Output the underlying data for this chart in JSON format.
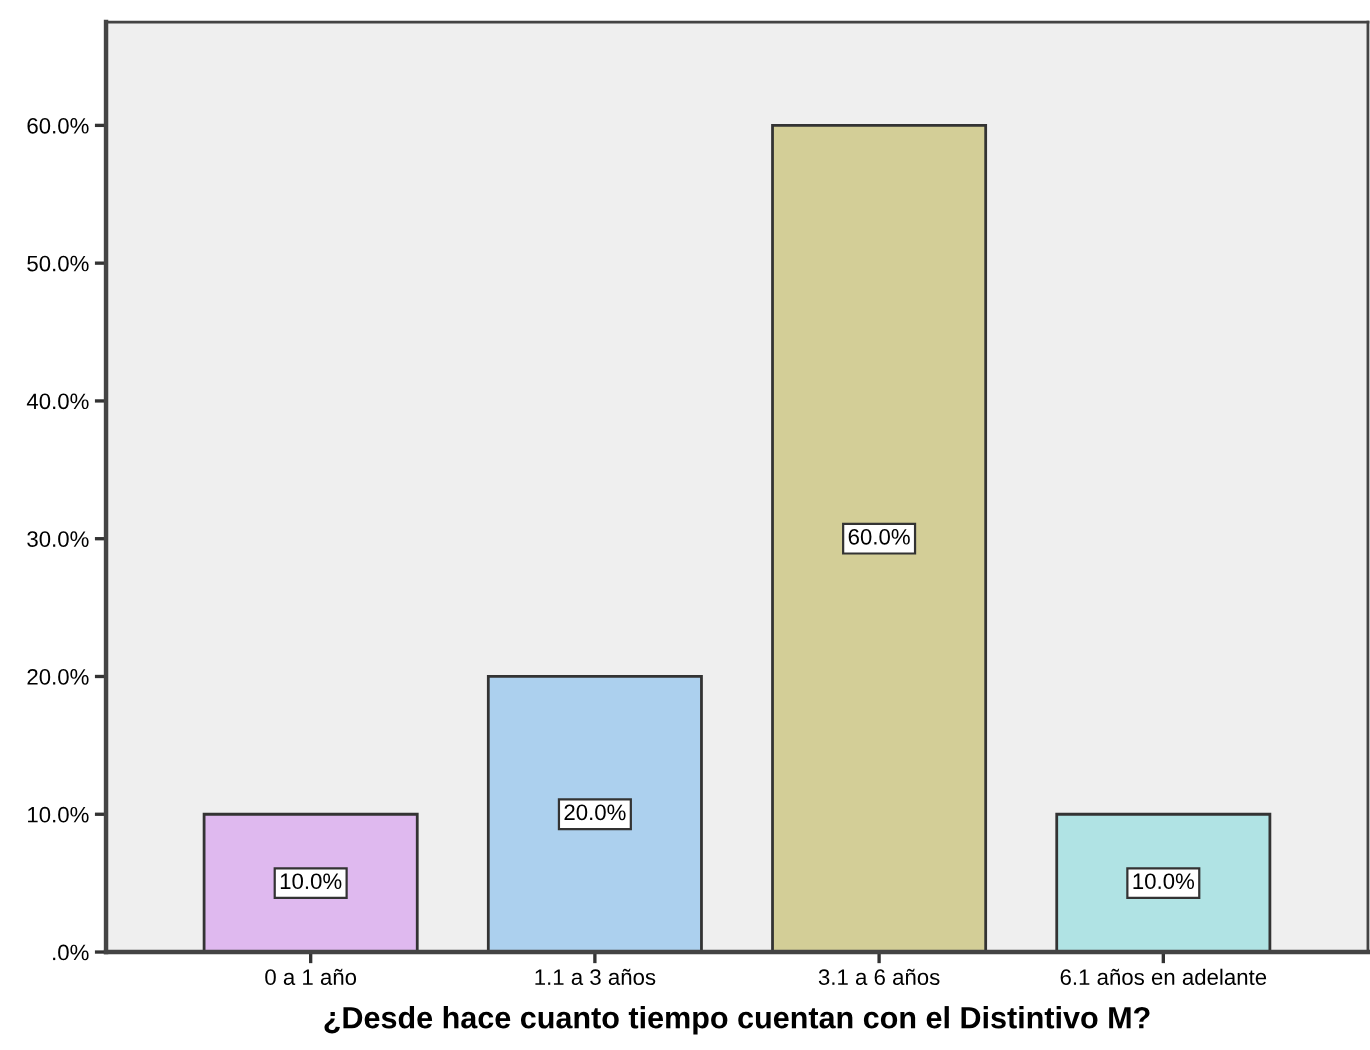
{
  "chart_data": {
    "type": "bar",
    "xlabel": "¿Desde hace cuanto tiempo cuentan con el Distintivo M?",
    "categories": [
      "0 a 1 año",
      "1.1 a 3 años",
      "3.1 a 6 años",
      "6.1 años en adelante"
    ],
    "values": [
      10,
      20,
      60,
      10
    ],
    "colors": [
      "#dfb9ef",
      "#acd0ee",
      "#d3ce97",
      "#b0e3e4"
    ],
    "value_labels": [
      "10.0%",
      "20.0%",
      "60.0%",
      "10.0%"
    ],
    "ylim": [
      0,
      67.5
    ],
    "yticks": [
      {
        "value": 0,
        "label": ".0%"
      },
      {
        "value": 10,
        "label": "10.0%"
      },
      {
        "value": 20,
        "label": "20.0%"
      },
      {
        "value": 30,
        "label": "30.0%"
      },
      {
        "value": 40,
        "label": "40.0%"
      },
      {
        "value": 50,
        "label": "50.0%"
      },
      {
        "value": 60,
        "label": "60.0%"
      }
    ],
    "grid": false,
    "legend": false
  }
}
